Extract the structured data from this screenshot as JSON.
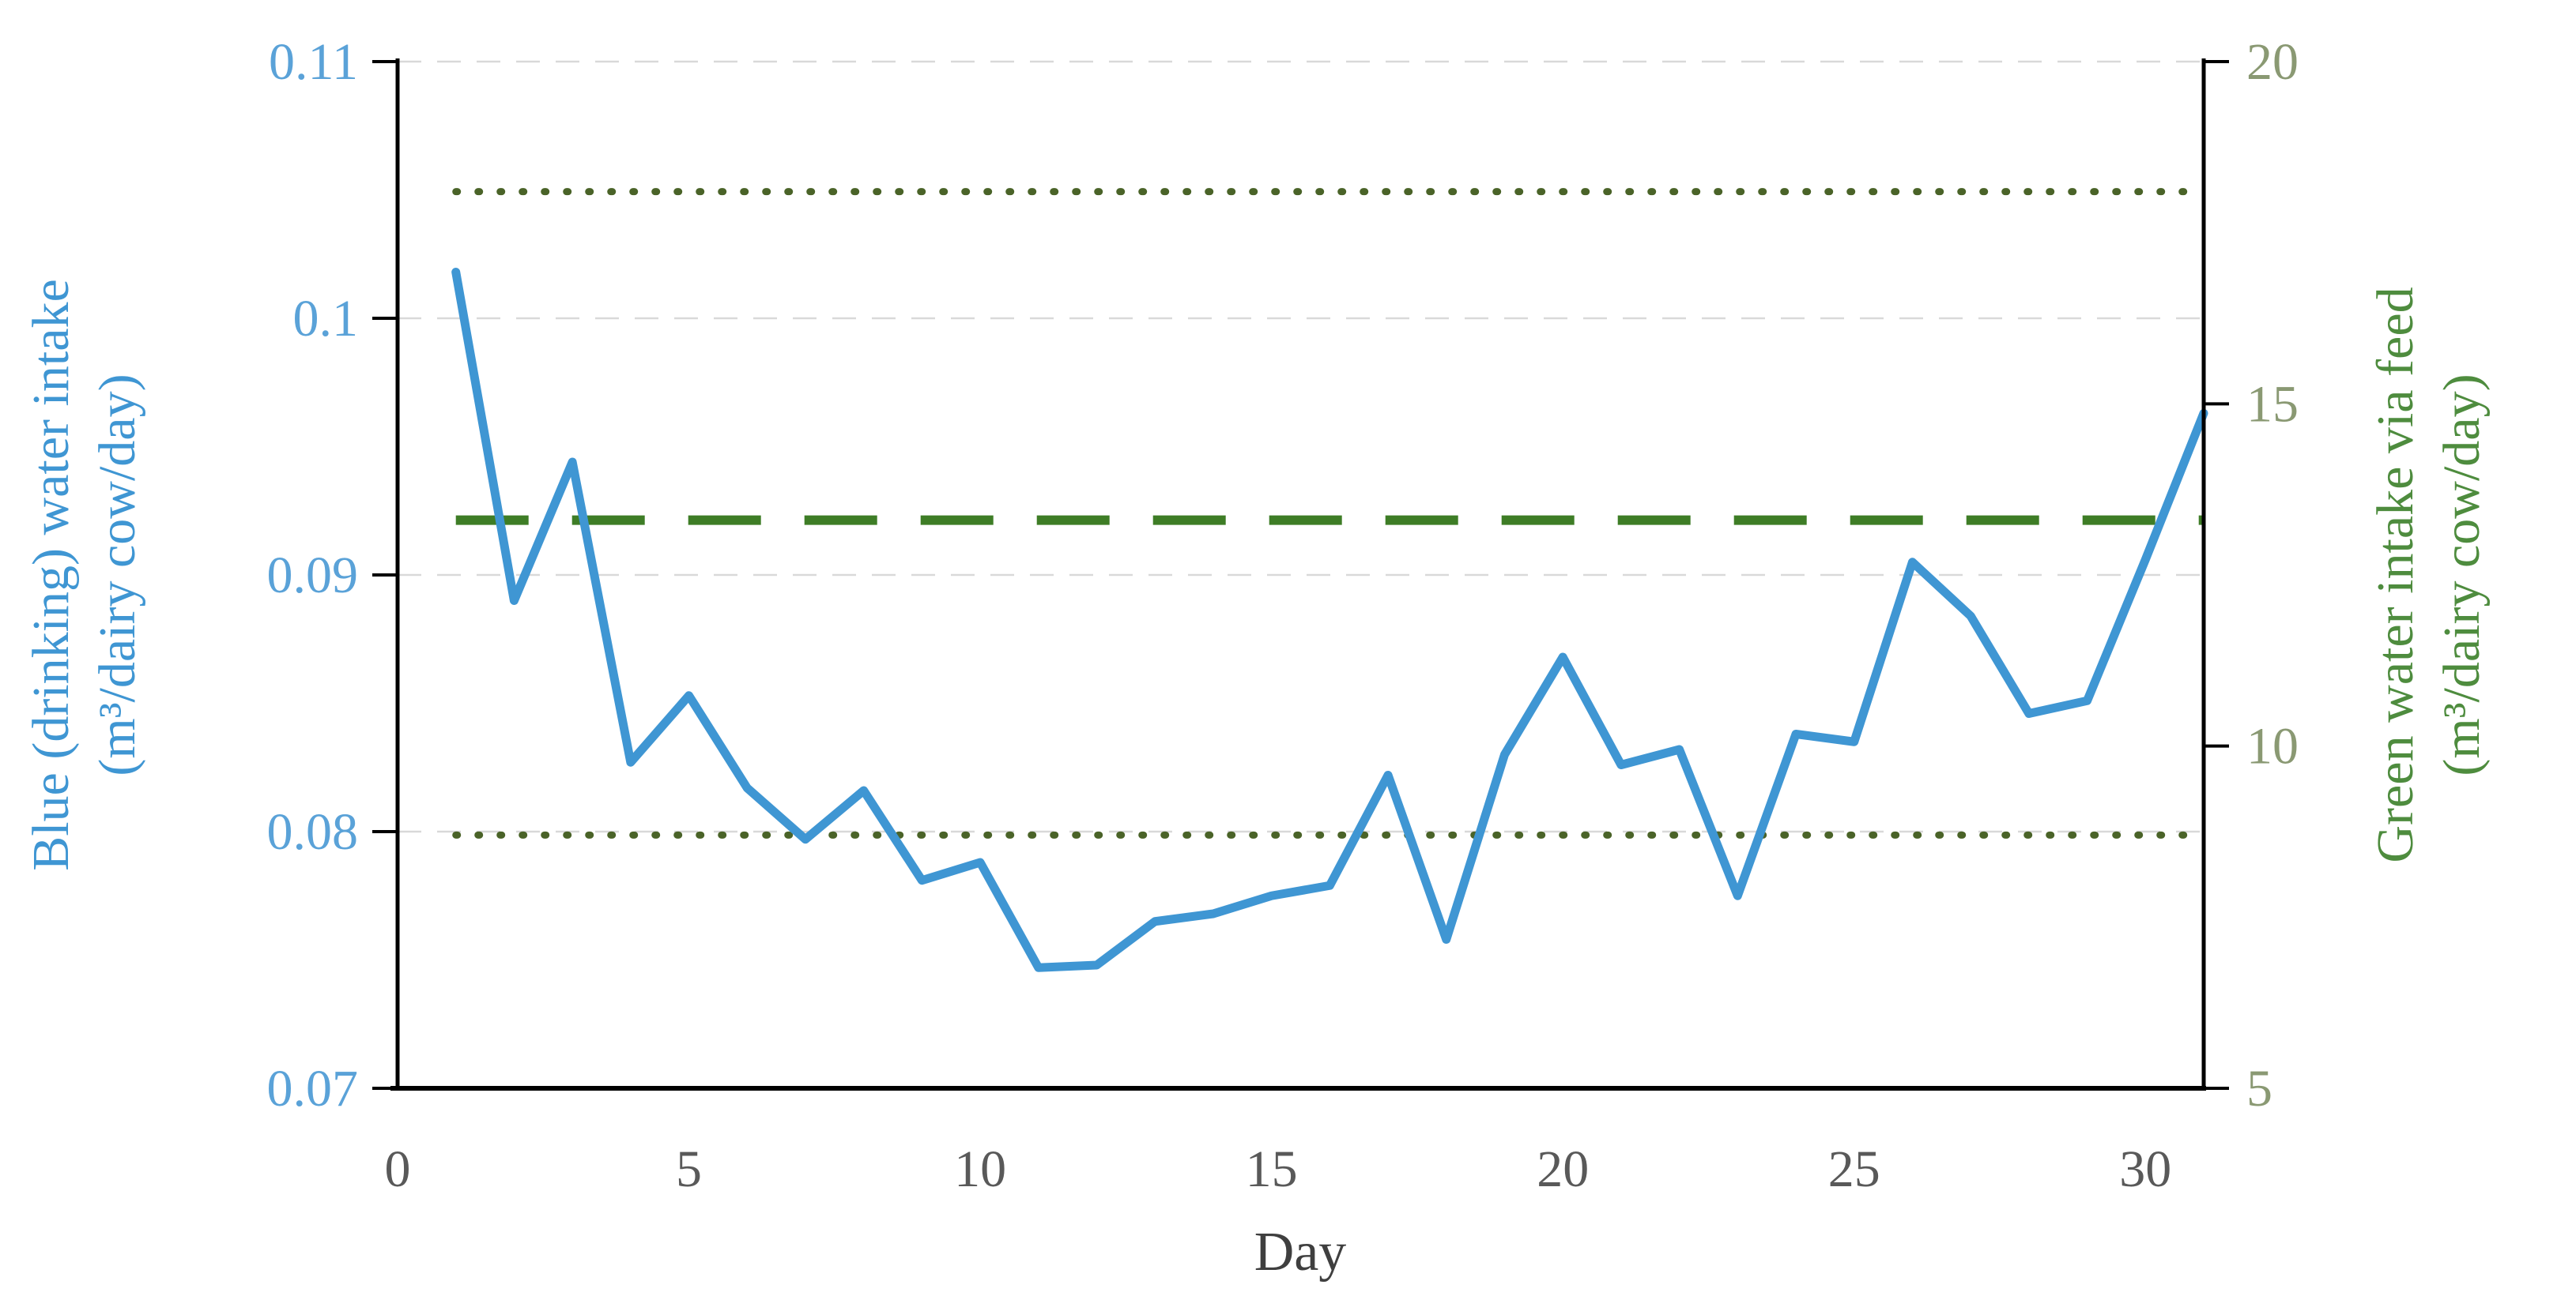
{
  "chart_data": {
    "type": "line",
    "title": "",
    "x_axis": {
      "title": "Day",
      "tick_labels": [
        "0",
        "5",
        "10",
        "15",
        "20",
        "25",
        "30"
      ],
      "tick_values": [
        0,
        5,
        10,
        15,
        20,
        25,
        30
      ],
      "range": [
        0,
        31
      ],
      "label_color": "#595959",
      "title_color": "#3f3f3f"
    },
    "left_axis": {
      "title_line1": "Blue (drinking) water intake",
      "title_line2": "(m³/dairy cow/day)",
      "tick_labels": [
        "0.11",
        "0.1",
        "0.09",
        "0.08",
        "0.07"
      ],
      "tick_values": [
        0.11,
        0.1,
        0.09,
        0.08,
        0.07
      ],
      "range": [
        0.07,
        0.11
      ],
      "label_color": "#5aa2d8",
      "title_color": "#3f96d3"
    },
    "right_axis": {
      "title_line1": "Green water intake via feed",
      "title_line2": "(m³/dairy cow/day)",
      "tick_labels": [
        "20",
        "15",
        "10",
        "5"
      ],
      "tick_values": [
        20,
        15,
        10,
        5
      ],
      "range": [
        5,
        20
      ],
      "label_color": "#8a9973",
      "title_color": "#4e8c3e"
    },
    "grid": {
      "on": true,
      "at_left_values": [
        0.11,
        0.1,
        0.09,
        0.08
      ],
      "color": "#d9d9d9",
      "style": "dashed"
    },
    "x": [
      1,
      2,
      3,
      4,
      5,
      6,
      7,
      8,
      9,
      10,
      11,
      12,
      13,
      14,
      15,
      16,
      17,
      18,
      19,
      20,
      21,
      22,
      23,
      24,
      25,
      26,
      27,
      28,
      29,
      30,
      31
    ],
    "series": [
      {
        "name": "Blue (drinking) water intake",
        "axis": "left",
        "style": "solid",
        "color": "#3f96d3",
        "values": [
          0.1018,
          0.089,
          0.0944,
          0.0827,
          0.0853,
          0.0817,
          0.0797,
          0.0816,
          0.0781,
          0.0788,
          0.0747,
          0.0748,
          0.0765,
          0.0768,
          0.0775,
          0.0779,
          0.0822,
          0.0758,
          0.083,
          0.0868,
          0.0826,
          0.0832,
          0.0775,
          0.0838,
          0.0835,
          0.0905,
          0.0884,
          0.0846,
          0.0851,
          0.0906,
          0.0963
        ]
      }
    ],
    "reference_lines": [
      {
        "name": "green water upper dotted bound",
        "axis": "right",
        "style": "dotted",
        "color": "#4a6328",
        "value": 18.1,
        "left_axis_equivalent": 0.1049
      },
      {
        "name": "green water mean dashed line",
        "axis": "right",
        "style": "dashed",
        "color": "#3e7d26",
        "value": 13.3,
        "left_axis_equivalent": 0.0922
      },
      {
        "name": "green water lower dotted bound",
        "axis": "right",
        "style": "dotted",
        "color": "#4a6328",
        "value": 8.7,
        "left_axis_equivalent": 0.0798
      }
    ],
    "legend": {
      "visible": false
    }
  }
}
